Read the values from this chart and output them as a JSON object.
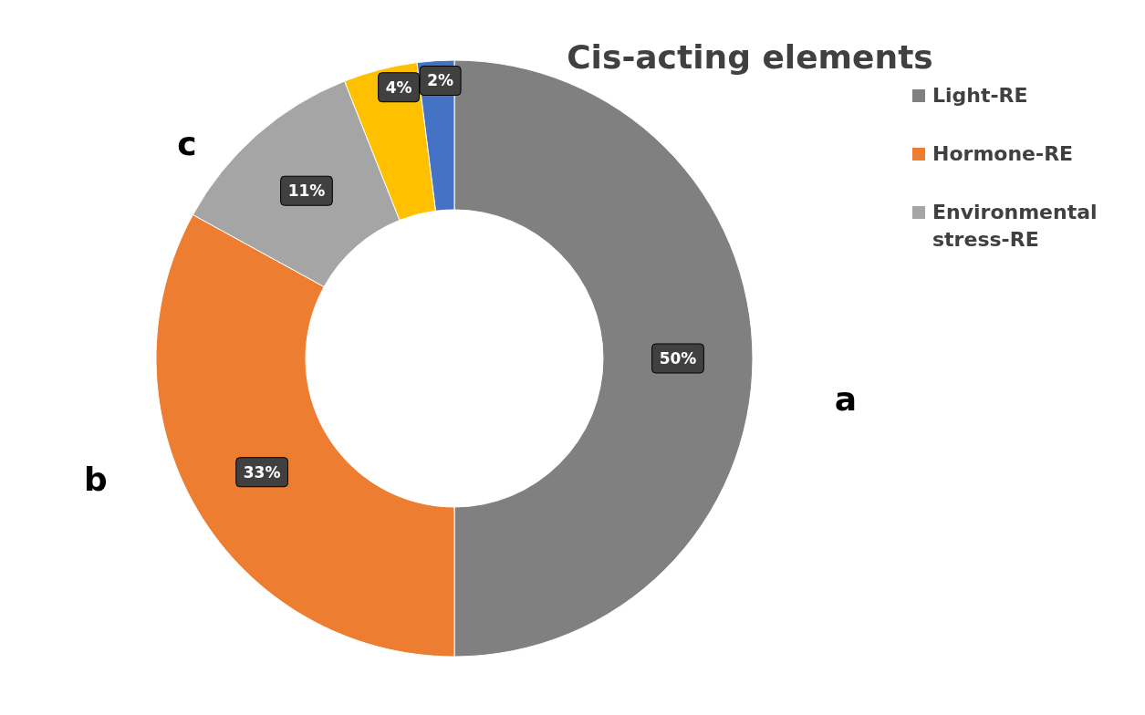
{
  "chart_data": {
    "type": "donut",
    "title": "Cis-acting elements",
    "categories": [
      "Light-RE",
      "Hormone-RE",
      "Environmental stress-RE",
      null,
      null
    ],
    "values": [
      50,
      33,
      11,
      4,
      2
    ],
    "value_labels": [
      "50%",
      "33%",
      "11%",
      "4%",
      "2%"
    ],
    "colors": [
      "#808080",
      "#ed7d31",
      "#a5a5a5",
      "#ffc000",
      "#4472c4"
    ],
    "legend": "top right",
    "annotations": [
      "a",
      "b",
      "c"
    ]
  }
}
